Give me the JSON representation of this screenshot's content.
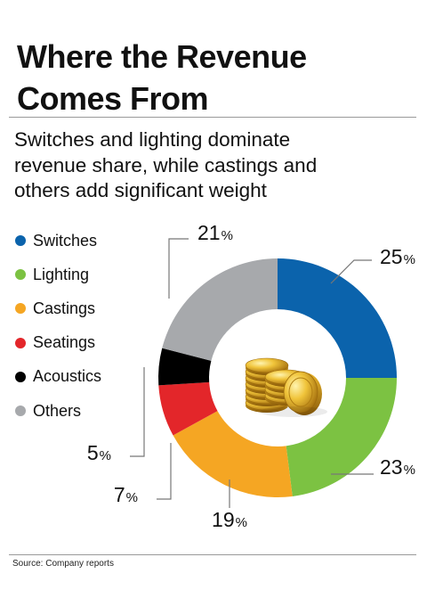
{
  "title_line1": "Where the Revenue",
  "title_line2": "Comes From",
  "subtitle_line1": "Switches and lighting dominate",
  "subtitle_line2": "revenue share, while castings and",
  "subtitle_line3": "others add significant weight",
  "source": "Source: Company reports",
  "center_icon": "gold-coins-icon",
  "chart_data": {
    "type": "pie",
    "style": "donut",
    "unit": "%",
    "categories": [
      "Switches",
      "Lighting",
      "Castings",
      "Seatings",
      "Acoustics",
      "Others"
    ],
    "values": [
      25,
      23,
      19,
      7,
      5,
      21
    ],
    "colors": [
      "#0b63ac",
      "#7cc242",
      "#f5a623",
      "#e3262a",
      "#000000",
      "#a7a9ac"
    ],
    "value_labels": [
      "25",
      "23",
      "19",
      "7",
      "5",
      "21"
    ],
    "legend_position": "left",
    "start": "top",
    "direction": "clockwise"
  }
}
